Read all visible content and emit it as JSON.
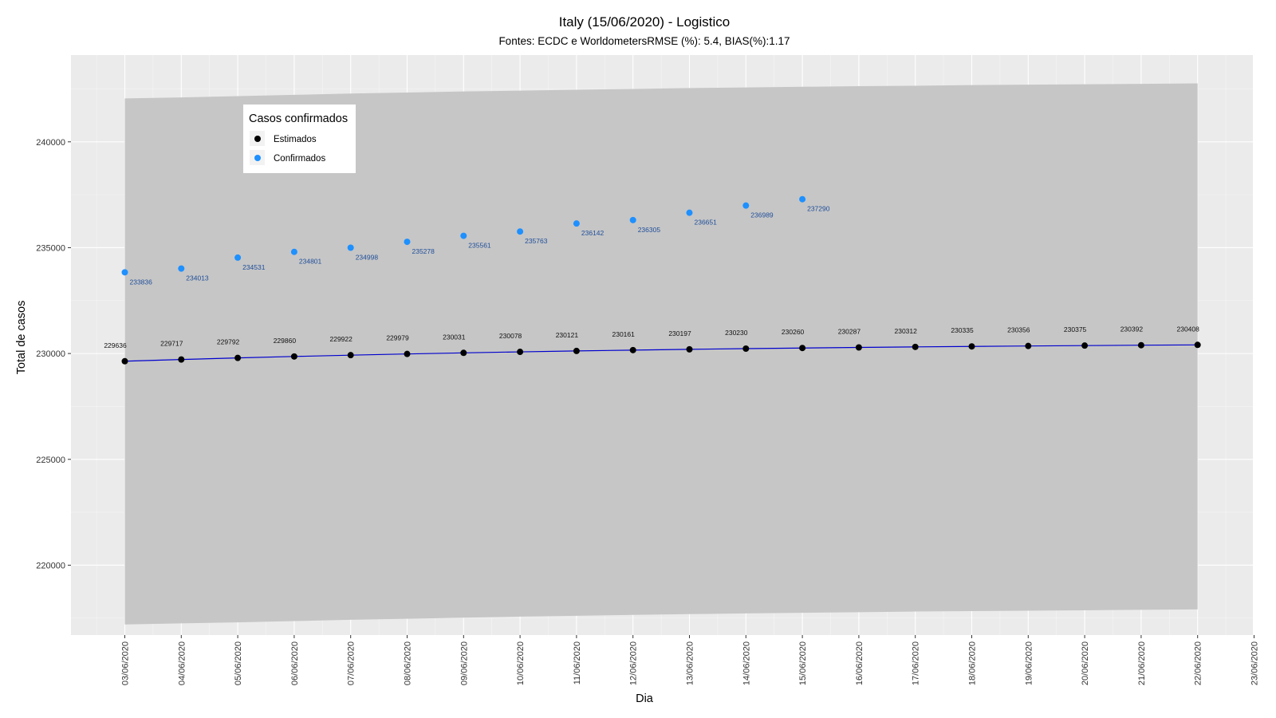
{
  "chart_data": {
    "type": "line",
    "title": "Italy (15/06/2020) - Logistico",
    "subtitle": "Fontes: ECDC e WorldometersRMSE (%): 5.4, BIAS(%):1.17",
    "xlabel": "Dia",
    "ylabel": "Total de casos",
    "ylim": [
      216700,
      244100
    ],
    "y_ticks": [
      220000,
      225000,
      230000,
      235000,
      240000
    ],
    "x": [
      "03/06/2020",
      "04/06/2020",
      "05/06/2020",
      "06/06/2020",
      "07/06/2020",
      "08/06/2020",
      "09/06/2020",
      "10/06/2020",
      "11/06/2020",
      "12/06/2020",
      "13/06/2020",
      "14/06/2020",
      "15/06/2020",
      "16/06/2020",
      "17/06/2020",
      "18/06/2020",
      "19/06/2020",
      "20/06/2020",
      "21/06/2020",
      "22/06/2020",
      "23/06/2020"
    ],
    "grid": true,
    "legend": {
      "title": "Casos confirmados",
      "position": "top-left",
      "entries": [
        {
          "label": "Estimados",
          "color": "#000000"
        },
        {
          "label": "Confirmados",
          "color": "#1e90ff"
        }
      ]
    },
    "series": [
      {
        "name": "Estimados",
        "color": "#000000",
        "line_color": "#0000cd",
        "x": [
          "03/06/2020",
          "04/06/2020",
          "05/06/2020",
          "06/06/2020",
          "07/06/2020",
          "08/06/2020",
          "09/06/2020",
          "10/06/2020",
          "11/06/2020",
          "12/06/2020",
          "13/06/2020",
          "14/06/2020",
          "15/06/2020",
          "16/06/2020",
          "17/06/2020",
          "18/06/2020",
          "19/06/2020",
          "20/06/2020",
          "21/06/2020",
          "22/06/2020"
        ],
        "values": [
          229636,
          229717,
          229792,
          229860,
          229922,
          229979,
          230031,
          230078,
          230121,
          230161,
          230197,
          230230,
          230260,
          230287,
          230312,
          230335,
          230356,
          230375,
          230392,
          230408
        ],
        "band_lower": [
          217200,
          217250,
          217300,
          217360,
          217420,
          217470,
          217520,
          217570,
          217610,
          217650,
          217690,
          217720,
          217750,
          217780,
          217810,
          217830,
          217850,
          217870,
          217890,
          217910
        ],
        "band_upper": [
          242050,
          242100,
          242160,
          242220,
          242280,
          242330,
          242380,
          242420,
          242460,
          242500,
          242540,
          242570,
          242600,
          242630,
          242650,
          242680,
          242700,
          242720,
          242740,
          242760
        ]
      },
      {
        "name": "Confirmados",
        "color": "#1e90ff",
        "x": [
          "03/06/2020",
          "04/06/2020",
          "05/06/2020",
          "06/06/2020",
          "07/06/2020",
          "08/06/2020",
          "09/06/2020",
          "10/06/2020",
          "11/06/2020",
          "12/06/2020",
          "13/06/2020",
          "14/06/2020",
          "15/06/2020"
        ],
        "values": [
          233836,
          234013,
          234531,
          234801,
          234998,
          235278,
          235561,
          235763,
          236142,
          236305,
          236651,
          236989,
          237290
        ]
      }
    ],
    "colors": {
      "panel_bg": "#ebebeb",
      "grid_major": "#ffffff",
      "grid_minor": "#f5f5f5",
      "band": "#c6c6c6",
      "est_line": "#0000cd",
      "est_point": "#000000",
      "conf_point": "#1e90ff",
      "conf_label": "#1f4e9a"
    }
  }
}
